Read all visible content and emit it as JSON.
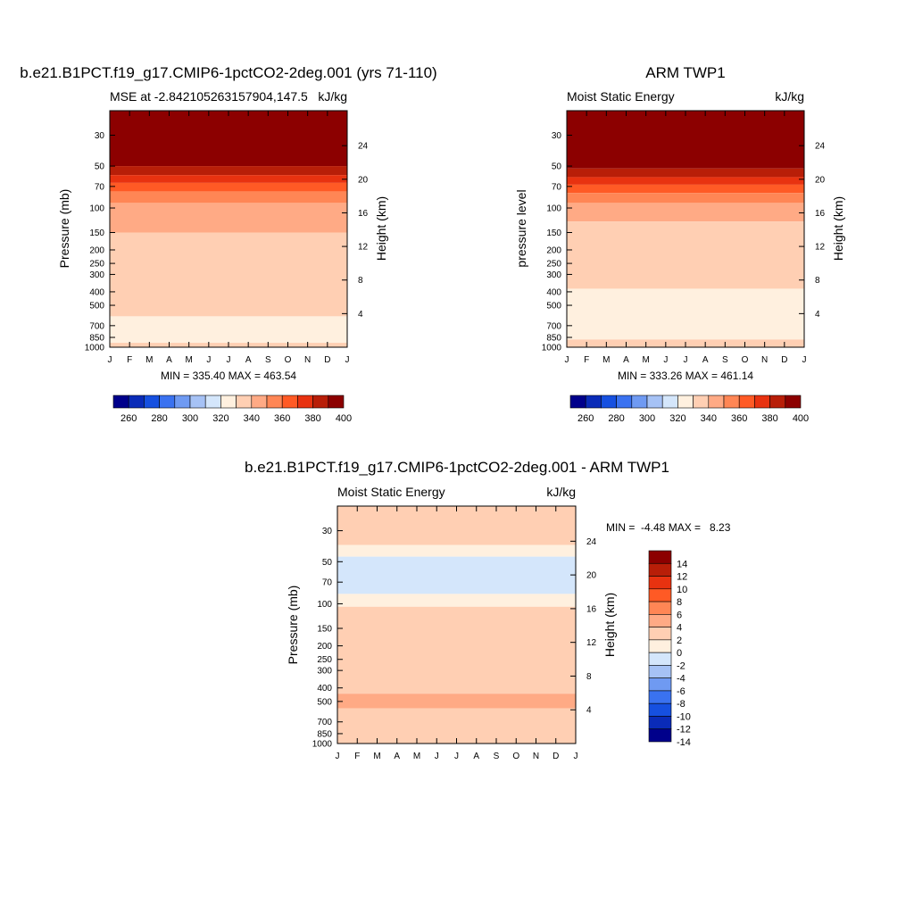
{
  "colors": {
    "mse_scale": [
      "#00008b",
      "#0a2bb8",
      "#1650e0",
      "#3a72f0",
      "#6f9af2",
      "#a6c2f5",
      "#d4e6fb",
      "#fff0df",
      "#ffcfb3",
      "#ffaa85",
      "#ff8655",
      "#ff5a25",
      "#e83210",
      "#b81e08",
      "#8c0000"
    ],
    "diff_scale": [
      "#00008b",
      "#0a2bb8",
      "#1650e0",
      "#3a72f0",
      "#6f9af2",
      "#a6c2f5",
      "#d4e6fb",
      "#fff0df",
      "#ffcfb3",
      "#ffaa85",
      "#ff8655",
      "#ff5a25",
      "#e83210",
      "#b81e08",
      "#8c0000"
    ]
  },
  "chart_data": [
    {
      "type": "heatmap",
      "title": "b.e21.B1PCT.f19_g17.CMIP6-1pctCO2-2deg.001 (yrs 71-110)",
      "subtitle_left": "MSE at -2.842105263157904,147.5",
      "subtitle_right": "kJ/kg",
      "ylabel": "Pressure (mb)",
      "ylabel_right": "Height (km)",
      "x_ticks": [
        "J",
        "F",
        "M",
        "A",
        "M",
        "J",
        "J",
        "A",
        "S",
        "O",
        "N",
        "D",
        "J"
      ],
      "y_ticks": [
        "30",
        "50",
        "70",
        "100",
        "150",
        "200",
        "250",
        "300",
        "400",
        "500",
        "700",
        "850",
        "1000"
      ],
      "y_right_ticks": [
        "24",
        "20",
        "16",
        "12",
        "8",
        "4"
      ],
      "stats": "MIN = 335.40 MAX = 463.54",
      "colorbar_labels": [
        "260",
        "280",
        "300",
        "320",
        "340",
        "360",
        "380",
        "400"
      ],
      "colorbar_orientation": "horizontal",
      "ylim": [
        1000,
        20
      ],
      "bands_hpa": [
        {
          "from_hpa": 20,
          "to_hpa": 50,
          "level": 400
        },
        {
          "from_hpa": 50,
          "to_hpa": 58,
          "level": 390
        },
        {
          "from_hpa": 58,
          "to_hpa": 66,
          "level": 380
        },
        {
          "from_hpa": 66,
          "to_hpa": 76,
          "level": 370
        },
        {
          "from_hpa": 76,
          "to_hpa": 92,
          "level": 360
        },
        {
          "from_hpa": 92,
          "to_hpa": 150,
          "level": 350
        },
        {
          "from_hpa": 150,
          "to_hpa": 600,
          "level": 340
        },
        {
          "from_hpa": 600,
          "to_hpa": 930,
          "level": 330
        },
        {
          "from_hpa": 930,
          "to_hpa": 1000,
          "level": 340
        }
      ]
    },
    {
      "type": "heatmap",
      "title": "ARM TWP1",
      "subtitle_left": "Moist Static Energy",
      "subtitle_right": "kJ/kg",
      "ylabel": "pressure level",
      "ylabel_right": "Height (km)",
      "x_ticks": [
        "J",
        "F",
        "M",
        "A",
        "M",
        "J",
        "J",
        "A",
        "S",
        "O",
        "N",
        "D",
        "J"
      ],
      "y_ticks": [
        "30",
        "50",
        "70",
        "100",
        "150",
        "200",
        "250",
        "300",
        "400",
        "500",
        "700",
        "850",
        "1000"
      ],
      "y_right_ticks": [
        "24",
        "20",
        "16",
        "12",
        "8",
        "4"
      ],
      "stats": "MIN = 333.26 MAX = 461.14",
      "colorbar_labels": [
        "260",
        "280",
        "300",
        "320",
        "340",
        "360",
        "380",
        "400"
      ],
      "colorbar_orientation": "horizontal",
      "ylim": [
        1000,
        20
      ],
      "bands_hpa": [
        {
          "from_hpa": 20,
          "to_hpa": 52,
          "level": 400
        },
        {
          "from_hpa": 52,
          "to_hpa": 60,
          "level": 390
        },
        {
          "from_hpa": 60,
          "to_hpa": 68,
          "level": 380
        },
        {
          "from_hpa": 68,
          "to_hpa": 78,
          "level": 370
        },
        {
          "from_hpa": 78,
          "to_hpa": 92,
          "level": 360
        },
        {
          "from_hpa": 92,
          "to_hpa": 125,
          "level": 350
        },
        {
          "from_hpa": 125,
          "to_hpa": 380,
          "level": 340
        },
        {
          "from_hpa": 380,
          "to_hpa": 880,
          "level": 330
        },
        {
          "from_hpa": 880,
          "to_hpa": 1000,
          "level": 340
        }
      ]
    },
    {
      "type": "heatmap",
      "title": "b.e21.B1PCT.f19_g17.CMIP6-1pctCO2-2deg.001 - ARM TWP1",
      "subtitle_left": "Moist Static Energy",
      "subtitle_right": "kJ/kg",
      "ylabel": "Pressure (mb)",
      "ylabel_right": "Height (km)",
      "x_ticks": [
        "J",
        "F",
        "M",
        "A",
        "M",
        "J",
        "J",
        "A",
        "S",
        "O",
        "N",
        "D",
        "J"
      ],
      "y_ticks": [
        "30",
        "50",
        "70",
        "100",
        "150",
        "200",
        "250",
        "300",
        "400",
        "500",
        "700",
        "850",
        "1000"
      ],
      "y_right_ticks": [
        "24",
        "20",
        "16",
        "12",
        "8",
        "4"
      ],
      "stats": "MIN =  -4.48 MAX =   8.23",
      "colorbar_labels": [
        "14",
        "12",
        "10",
        "8",
        "6",
        "4",
        "2",
        "0",
        "-2",
        "-4",
        "-6",
        "-8",
        "-10",
        "-12",
        "-14"
      ],
      "colorbar_orientation": "vertical",
      "ylim": [
        1000,
        20
      ],
      "bands_hpa": [
        {
          "from_hpa": 20,
          "to_hpa": 38,
          "level": 2
        },
        {
          "from_hpa": 38,
          "to_hpa": 46,
          "level": 0
        },
        {
          "from_hpa": 46,
          "to_hpa": 85,
          "level": -2
        },
        {
          "from_hpa": 85,
          "to_hpa": 105,
          "level": 0
        },
        {
          "from_hpa": 105,
          "to_hpa": 440,
          "level": 2
        },
        {
          "from_hpa": 440,
          "to_hpa": 560,
          "level": 4
        },
        {
          "from_hpa": 560,
          "to_hpa": 1000,
          "level": 2
        }
      ]
    }
  ]
}
